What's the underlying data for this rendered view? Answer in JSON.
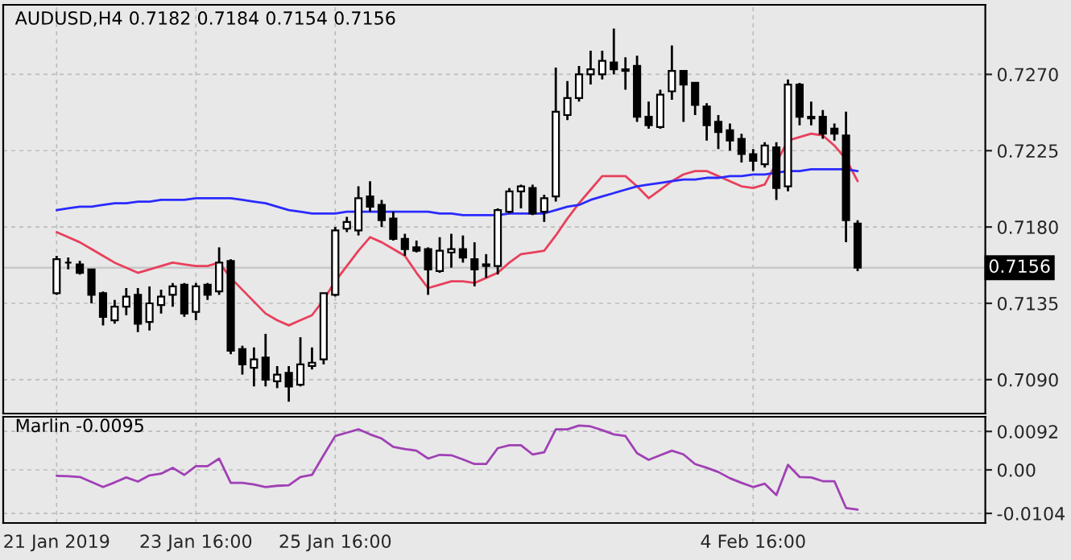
{
  "chart_data": [
    {
      "type": "candlestick",
      "title": "AUDUSD,H4 0.7182 0.7184 0.7154 0.7156",
      "categories": [
        null,
        null,
        null,
        null,
        null,
        null,
        null,
        null,
        null,
        null,
        null,
        null,
        null,
        null,
        null,
        null,
        null,
        null,
        null,
        null,
        null,
        null,
        null,
        null,
        null,
        null,
        null,
        null,
        null,
        null,
        null,
        null,
        null,
        null,
        null,
        null,
        null,
        null,
        null,
        null,
        null,
        null,
        null,
        null,
        null,
        null,
        null,
        null,
        null,
        null,
        null,
        null,
        null,
        null,
        null,
        null,
        null,
        null,
        null,
        null,
        null,
        null,
        null,
        null,
        null,
        null,
        null,
        null,
        null,
        null
      ],
      "ohlc": [
        [
          0.7141,
          0.7163,
          0.714,
          0.7161
        ],
        [
          0.7159,
          0.7162,
          0.7155,
          0.7159
        ],
        [
          0.7158,
          0.716,
          0.7152,
          0.7153
        ],
        [
          0.7155,
          0.7155,
          0.7135,
          0.714
        ],
        [
          0.7141,
          0.7142,
          0.7122,
          0.7127
        ],
        [
          0.7125,
          0.7137,
          0.7123,
          0.7133
        ],
        [
          0.7133,
          0.7144,
          0.7128,
          0.7139
        ],
        [
          0.714,
          0.7144,
          0.7118,
          0.7123
        ],
        [
          0.7124,
          0.7145,
          0.7119,
          0.7135
        ],
        [
          0.7134,
          0.7143,
          0.7129,
          0.7139
        ],
        [
          0.714,
          0.7147,
          0.7133,
          0.7145
        ],
        [
          0.7146,
          0.7147,
          0.7127,
          0.7129
        ],
        [
          0.713,
          0.7147,
          0.7125,
          0.7145
        ],
        [
          0.7146,
          0.7147,
          0.7137,
          0.714
        ],
        [
          0.7142,
          0.7168,
          0.714,
          0.7159
        ],
        [
          0.716,
          0.7161,
          0.7105,
          0.7107
        ],
        [
          0.7108,
          0.711,
          0.7093,
          0.7099
        ],
        [
          0.7097,
          0.7109,
          0.7086,
          0.7102
        ],
        [
          0.7103,
          0.7117,
          0.7086,
          0.709
        ],
        [
          0.7089,
          0.7098,
          0.7085,
          0.7093
        ],
        [
          0.7094,
          0.7098,
          0.7077,
          0.7086
        ],
        [
          0.7087,
          0.7115,
          0.7086,
          0.7099
        ],
        [
          0.7098,
          0.7109,
          0.7096,
          0.71
        ],
        [
          0.7102,
          0.7141,
          0.7099,
          0.7141
        ],
        [
          0.714,
          0.718,
          0.7139,
          0.7178
        ],
        [
          0.7179,
          0.7186,
          0.7177,
          0.7183
        ],
        [
          0.7178,
          0.7204,
          0.7175,
          0.7197
        ],
        [
          0.7198,
          0.7207,
          0.7189,
          0.7192
        ],
        [
          0.7193,
          0.7196,
          0.718,
          0.7184
        ],
        [
          0.7185,
          0.7189,
          0.7172,
          0.7173
        ],
        [
          0.7173,
          0.7176,
          0.7163,
          0.7167
        ],
        [
          0.7168,
          0.7172,
          0.7165,
          0.7166
        ],
        [
          0.7167,
          0.7168,
          0.714,
          0.7155
        ],
        [
          0.7154,
          0.7174,
          0.7153,
          0.7166
        ],
        [
          0.7165,
          0.7176,
          0.7156,
          0.7167
        ],
        [
          0.7167,
          0.7175,
          0.7159,
          0.7162
        ],
        [
          0.7161,
          0.7171,
          0.7145,
          0.7155
        ],
        [
          0.7158,
          0.7164,
          0.715,
          0.7157
        ],
        [
          0.7157,
          0.7191,
          0.7152,
          0.719
        ],
        [
          0.7189,
          0.7203,
          0.7188,
          0.7201
        ],
        [
          0.7201,
          0.7205,
          0.7191,
          0.7204
        ],
        [
          0.7203,
          0.7205,
          0.7187,
          0.7188
        ],
        [
          0.7189,
          0.7199,
          0.7183,
          0.7197
        ],
        [
          0.7198,
          0.7274,
          0.7195,
          0.7248
        ],
        [
          0.7246,
          0.7266,
          0.7243,
          0.7256
        ],
        [
          0.7256,
          0.7275,
          0.7254,
          0.727
        ],
        [
          0.727,
          0.7284,
          0.7264,
          0.7273
        ],
        [
          0.727,
          0.7284,
          0.7267,
          0.7278
        ],
        [
          0.7277,
          0.7297,
          0.727,
          0.7273
        ],
        [
          0.7273,
          0.728,
          0.7261,
          0.7272
        ],
        [
          0.7275,
          0.7281,
          0.7242,
          0.7245
        ],
        [
          0.7245,
          0.7254,
          0.7238,
          0.724
        ],
        [
          0.7239,
          0.7261,
          0.7238,
          0.7258
        ],
        [
          0.726,
          0.7287,
          0.7255,
          0.7272
        ],
        [
          0.7272,
          0.7272,
          0.7242,
          0.7264
        ],
        [
          0.7265,
          0.7265,
          0.7246,
          0.7252
        ],
        [
          0.7251,
          0.7253,
          0.7231,
          0.724
        ],
        [
          0.7242,
          0.7246,
          0.7226,
          0.7236
        ],
        [
          0.7237,
          0.7241,
          0.7225,
          0.7231
        ],
        [
          0.7232,
          0.7235,
          0.7218,
          0.7223
        ],
        [
          0.7223,
          0.7226,
          0.7213,
          0.7219
        ],
        [
          0.7217,
          0.723,
          0.7215,
          0.7228
        ],
        [
          0.7227,
          0.723,
          0.7196,
          0.7203
        ],
        [
          0.7204,
          0.7267,
          0.7201,
          0.7264
        ],
        [
          0.7264,
          0.7265,
          0.724,
          0.7245
        ],
        [
          0.7245,
          0.7254,
          0.724,
          0.7244
        ],
        [
          0.7245,
          0.7249,
          0.7232,
          0.7235
        ],
        [
          0.7238,
          0.7241,
          0.7231,
          0.7235
        ],
        [
          0.7234,
          0.7248,
          0.7171,
          0.7184
        ],
        [
          0.7182,
          0.7184,
          0.7154,
          0.7156
        ]
      ],
      "series": [
        {
          "type": "line",
          "color": "#e8405c",
          "values": [
            0.7177,
            0.7174,
            0.7171,
            0.7167,
            0.7163,
            0.7159,
            0.7156,
            0.7153,
            0.7155,
            0.7157,
            0.7159,
            0.7158,
            0.7157,
            0.7157,
            0.7159,
            0.715,
            0.7143,
            0.7136,
            0.7129,
            0.7125,
            0.7122,
            0.7125,
            0.7128,
            0.7137,
            0.7148,
            0.7157,
            0.7166,
            0.7174,
            0.7171,
            0.7167,
            0.7163,
            0.7153,
            0.7144,
            0.7146,
            0.7148,
            0.7148,
            0.7147,
            0.715,
            0.7153,
            0.7159,
            0.7164,
            0.7165,
            0.7166,
            0.7175,
            0.7185,
            0.7194,
            0.7202,
            0.721,
            0.721,
            0.721,
            0.7204,
            0.7197,
            0.7202,
            0.7207,
            0.7211,
            0.7213,
            0.7213,
            0.721,
            0.7207,
            0.7204,
            0.7203,
            0.7205,
            0.7218,
            0.7231,
            0.7233,
            0.7235,
            0.7234,
            0.7228,
            0.722,
            0.7207
          ]
        },
        {
          "type": "line",
          "color": "#2a2aff",
          "values": [
            0.719,
            0.7191,
            0.7192,
            0.7192,
            0.7193,
            0.7194,
            0.7194,
            0.7195,
            0.7195,
            0.7196,
            0.7196,
            0.7196,
            0.7197,
            0.7197,
            0.7197,
            0.7197,
            0.7196,
            0.7195,
            0.7194,
            0.7192,
            0.719,
            0.7189,
            0.7188,
            0.7188,
            0.7188,
            0.7189,
            0.7189,
            0.7189,
            0.7189,
            0.7189,
            0.7189,
            0.7189,
            0.7189,
            0.7188,
            0.7188,
            0.7187,
            0.7187,
            0.7187,
            0.7187,
            0.7188,
            0.7188,
            0.7188,
            0.7188,
            0.719,
            0.7192,
            0.7193,
            0.7196,
            0.7198,
            0.72,
            0.7202,
            0.7204,
            0.7205,
            0.7206,
            0.7207,
            0.7208,
            0.7208,
            0.7209,
            0.7209,
            0.721,
            0.721,
            0.7211,
            0.7211,
            0.7212,
            0.7213,
            0.7213,
            0.7214,
            0.7214,
            0.7214,
            0.7214,
            0.7213
          ]
        }
      ],
      "ylim": [
        0.707,
        0.7311
      ],
      "yticks": [
        {
          "value": 0.709,
          "label": "0.7090"
        },
        0.7135,
        {
          "value": 0.718,
          "label": "0.7180"
        },
        0.7225,
        {
          "value": 0.727,
          "label": "0.7270"
        }
      ],
      "ref_lines": [
        {
          "axis": "y",
          "value": 0.7156,
          "label": "0.7156",
          "color": "#c8c8c8"
        }
      ],
      "grid": true
    },
    {
      "type": "line",
      "title": "Marlin -0.0095",
      "categories": [
        "21 Jan 2019",
        null,
        null,
        null,
        null,
        null,
        null,
        null,
        null,
        null,
        null,
        null,
        "23 Jan 16:00",
        null,
        null,
        null,
        null,
        null,
        null,
        null,
        null,
        null,
        null,
        null,
        "25 Jan 16:00",
        null,
        null,
        null,
        null,
        null,
        null,
        null,
        null,
        null,
        null,
        null,
        null,
        null,
        null,
        null,
        null,
        null,
        null,
        null,
        null,
        null,
        null,
        null,
        null,
        null,
        null,
        null,
        null,
        null,
        null,
        null,
        null,
        null,
        null,
        null,
        "4 Feb 16:00",
        null,
        null,
        null,
        null,
        null,
        null,
        null,
        null,
        null
      ],
      "series": [
        {
          "color": "#a040b4",
          "values": [
            -0.0014,
            -0.0015,
            -0.0017,
            -0.0029,
            -0.0041,
            -0.003,
            -0.0018,
            -0.0028,
            -0.0013,
            -0.0009,
            0.0005,
            -0.0012,
            0.0009,
            0.0009,
            0.0027,
            -0.0031,
            -0.0031,
            -0.0035,
            -0.0041,
            -0.0038,
            -0.0037,
            -0.0017,
            -0.0012,
            0.0035,
            0.0081,
            0.0089,
            0.0097,
            0.0085,
            0.0075,
            0.0055,
            0.005,
            0.0046,
            0.0027,
            0.0036,
            0.0035,
            0.0025,
            0.0014,
            0.0014,
            0.0052,
            0.0059,
            0.0059,
            0.0037,
            0.0042,
            0.0097,
            0.0097,
            0.0106,
            0.0104,
            0.0095,
            0.0085,
            0.0081,
            0.004,
            0.0024,
            0.0035,
            0.0046,
            0.0037,
            0.0014,
            0.0005,
            -0.0005,
            -0.002,
            -0.0031,
            -0.0041,
            -0.0033,
            -0.006,
            0.0012,
            -0.0017,
            -0.0018,
            -0.0027,
            -0.0027,
            -0.0091,
            -0.0095
          ]
        }
      ],
      "ylim": [
        -0.0127,
        0.0127
      ],
      "yticks": [
        0.0092,
        {
          "value": 0,
          "label": "0.00"
        },
        -0.0104
      ],
      "grid": true
    }
  ]
}
